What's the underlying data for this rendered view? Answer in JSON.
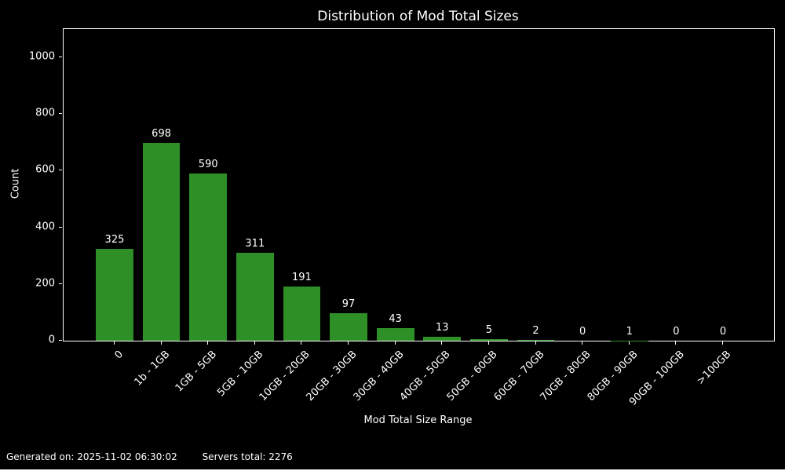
{
  "title": "Distribution of Mod Total Sizes",
  "footer": {
    "generated": "Generated on: 2025-11-02 06:30:02",
    "servers_total": "Servers total: 2276"
  },
  "colors": {
    "background": "#000000",
    "bar": "#2d8f26",
    "text": "#ffffff",
    "axis": "#ffffff"
  },
  "chart_data": {
    "type": "bar",
    "title": "Distribution of Mod Total Sizes",
    "xlabel": "Mod Total Size Range",
    "ylabel": "Count",
    "categories": [
      "0",
      "1b - 1GB",
      "1GB - 5GB",
      "5GB - 10GB",
      "10GB - 20GB",
      "20GB - 30GB",
      "30GB - 40GB",
      "40GB - 50GB",
      "50GB - 60GB",
      "60GB - 70GB",
      "70GB - 80GB",
      "80GB - 90GB",
      "90GB - 100GB",
      ">100GB"
    ],
    "values": [
      325,
      698,
      590,
      311,
      191,
      97,
      43,
      13,
      5,
      2,
      0,
      1,
      0,
      0
    ],
    "yticks": [
      0,
      200,
      400,
      600,
      800,
      1000
    ],
    "ylim": [
      0,
      1100
    ],
    "grid": false,
    "legend": null,
    "bar_value_labels": true,
    "xtick_rotation_deg": 45
  }
}
